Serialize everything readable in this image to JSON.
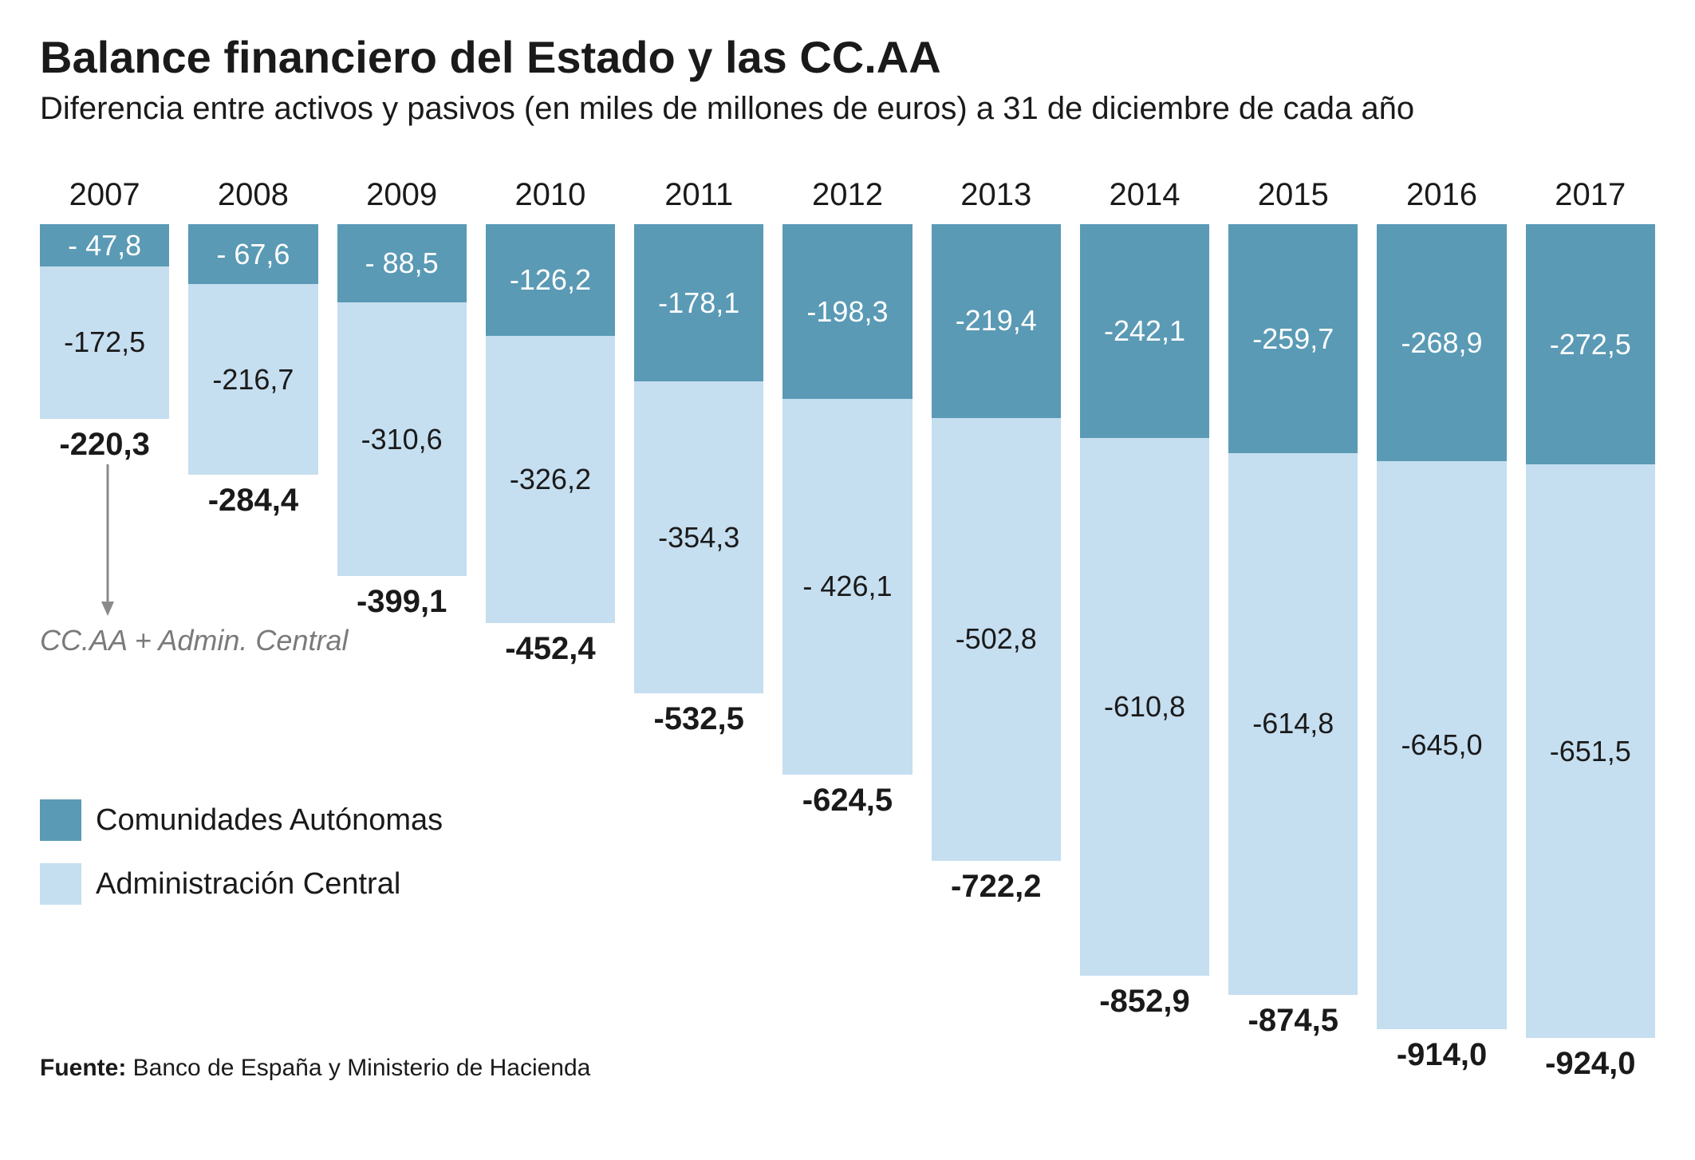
{
  "title": "Balance financiero del Estado y las CC.AA",
  "subtitle": "Diferencia entre activos y pasivos (en miles de millones de euros) a 31 de diciembre de cada año",
  "annotation": "CC.AA + Admin. Central",
  "legend": {
    "seriesA": "Comunidades Autónomas",
    "seriesB": "Administración Central"
  },
  "source_label": "Fuente:",
  "source_text": "Banco de España y Ministerio de Hacienda",
  "style": {
    "colorA": "#5a9ab5",
    "colorB": "#c5def0",
    "segAText": "#ffffff",
    "segBText": "#1a1a1a",
    "titleSize": 56,
    "subtitleSize": 40,
    "yearSize": 40,
    "valueSize": 36,
    "totalSize": 40,
    "legendSize": 38,
    "annotationSize": 36,
    "sourceSize": 30,
    "chartHeightPx": 1020,
    "maxTotal": 924.0,
    "legendTop": 780,
    "annotationTop": 560,
    "arrowTop": 360,
    "arrowHeight": 190
  },
  "data": [
    {
      "year": "2007",
      "a": 47.8,
      "aLabel": "- 47,8",
      "b": 172.5,
      "bLabel": "-172,5",
      "total": "-220,3"
    },
    {
      "year": "2008",
      "a": 67.6,
      "aLabel": "- 67,6",
      "b": 216.7,
      "bLabel": "-216,7",
      "total": "-284,4"
    },
    {
      "year": "2009",
      "a": 88.5,
      "aLabel": "- 88,5",
      "b": 310.6,
      "bLabel": "-310,6",
      "total": "-399,1"
    },
    {
      "year": "2010",
      "a": 126.2,
      "aLabel": "-126,2",
      "b": 326.2,
      "bLabel": "-326,2",
      "total": "-452,4"
    },
    {
      "year": "2011",
      "a": 178.1,
      "aLabel": "-178,1",
      "b": 354.3,
      "bLabel": "-354,3",
      "total": "-532,5"
    },
    {
      "year": "2012",
      "a": 198.3,
      "aLabel": "-198,3",
      "b": 426.1,
      "bLabel": "- 426,1",
      "total": "-624,5"
    },
    {
      "year": "2013",
      "a": 219.4,
      "aLabel": "-219,4",
      "b": 502.8,
      "bLabel": "-502,8",
      "total": "-722,2"
    },
    {
      "year": "2014",
      "a": 242.1,
      "aLabel": "-242,1",
      "b": 610.8,
      "bLabel": "-610,8",
      "total": "-852,9"
    },
    {
      "year": "2015",
      "a": 259.7,
      "aLabel": "-259,7",
      "b": 614.8,
      "bLabel": "-614,8",
      "total": "-874,5"
    },
    {
      "year": "2016",
      "a": 268.9,
      "aLabel": "-268,9",
      "b": 645.0,
      "bLabel": "-645,0",
      "total": "-914,0"
    },
    {
      "year": "2017",
      "a": 272.5,
      "aLabel": "-272,5",
      "b": 651.5,
      "bLabel": "-651,5",
      "total": "-924,0"
    }
  ]
}
